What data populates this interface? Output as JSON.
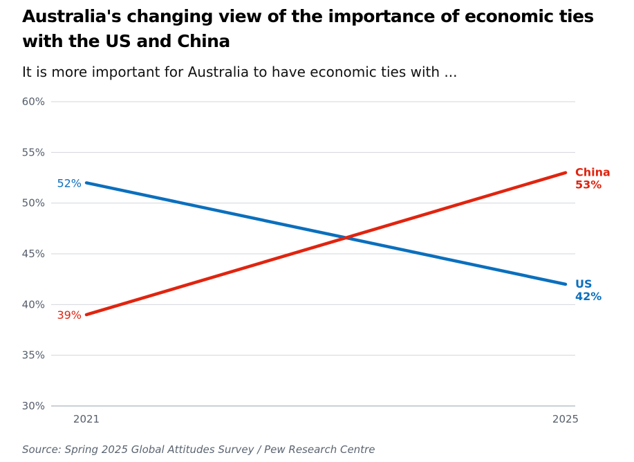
{
  "chart_data": {
    "type": "line",
    "title": "Australia's changing view of the importance of economic ties with the US and China",
    "subtitle": "It is more important for Australia to have economic ties with ...",
    "source": "Source: Spring 2025 Global Attitudes Survey / Pew Research Centre",
    "x": [
      "2021",
      "2025"
    ],
    "ylim": [
      30,
      60
    ],
    "yticks": [
      30,
      35,
      40,
      45,
      50,
      55,
      60
    ],
    "ytick_labels": [
      "30%",
      "35%",
      "40%",
      "45%",
      "50%",
      "55%",
      "60%"
    ],
    "grid": true,
    "series": [
      {
        "name": "US",
        "values": [
          52,
          42
        ],
        "labels": [
          "52%",
          "42%"
        ],
        "color": "#0b6fbd"
      },
      {
        "name": "China",
        "values": [
          39,
          53
        ],
        "labels": [
          "39%",
          "53%"
        ],
        "color": "#e0240f"
      }
    ]
  }
}
